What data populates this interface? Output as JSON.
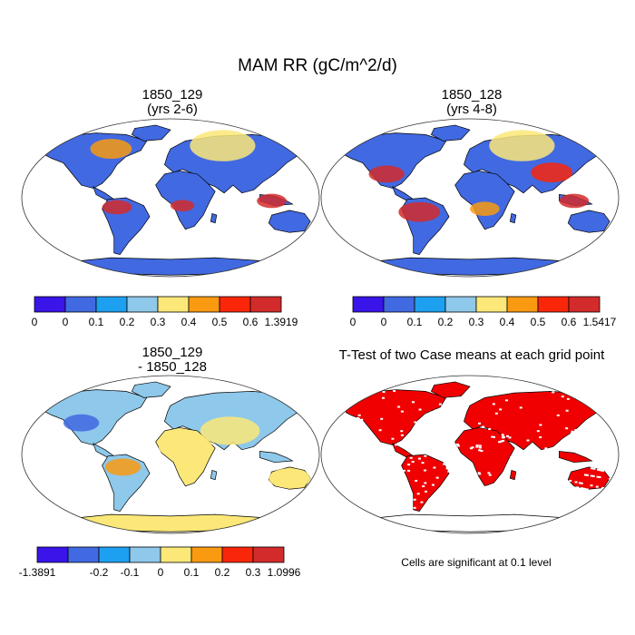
{
  "figure": {
    "title": "MAM RR (gC/m^2/d)"
  },
  "panels": [
    {
      "id": "case1",
      "title_line1": "1850_129",
      "title_line2": "(yrs 2-6)",
      "fill_note": "mostly low values (0-0.1) with high (0.5-1.39) in tropics",
      "colorbar": {
        "colors": [
          "#3a14e8",
          "#4169e1",
          "#1ea0f0",
          "#8ec8ea",
          "#fce878",
          "#f99a10",
          "#f9260a",
          "#d32b2b"
        ],
        "labels": [
          "0",
          "0",
          "0.1",
          "0.2",
          "0.3",
          "0.4",
          "0.5",
          "0.6",
          "1.3919"
        ]
      }
    },
    {
      "id": "case2",
      "title_line1": "1850_128",
      "title_line2": "(yrs 4-8)",
      "colorbar": {
        "colors": [
          "#3a14e8",
          "#4169e1",
          "#1ea0f0",
          "#8ec8ea",
          "#fce878",
          "#f99a10",
          "#f9260a",
          "#d32b2b"
        ],
        "labels": [
          "0",
          "0",
          "0.1",
          "0.2",
          "0.3",
          "0.4",
          "0.5",
          "0.6",
          "1.5417"
        ]
      }
    },
    {
      "id": "difference",
      "title_line1": "1850_129",
      "title_line2": "- 1850_128",
      "colorbar": {
        "colors": [
          "#3a14e8",
          "#4169e1",
          "#1ea0f0",
          "#8ec8ea",
          "#fce878",
          "#f99a10",
          "#f9260a",
          "#d32b2b"
        ],
        "labels": [
          "-1.3891",
          "",
          "-0.2",
          "-0.1",
          "0",
          "0.1",
          "0.2",
          "0.3",
          "1.0996"
        ]
      }
    },
    {
      "id": "ttest",
      "title_line1": "T-Test of two Case means at each grid point",
      "note": "Cells are significant at 0.1 level"
    }
  ],
  "colors": {
    "ocean": "#ffffff",
    "land_low": "#4169e1",
    "land_high": "#d32b2b",
    "difference_neutral": "#fce878",
    "difference_light": "#8ec8ea",
    "significant": "#f00000",
    "outline": "#000000"
  }
}
